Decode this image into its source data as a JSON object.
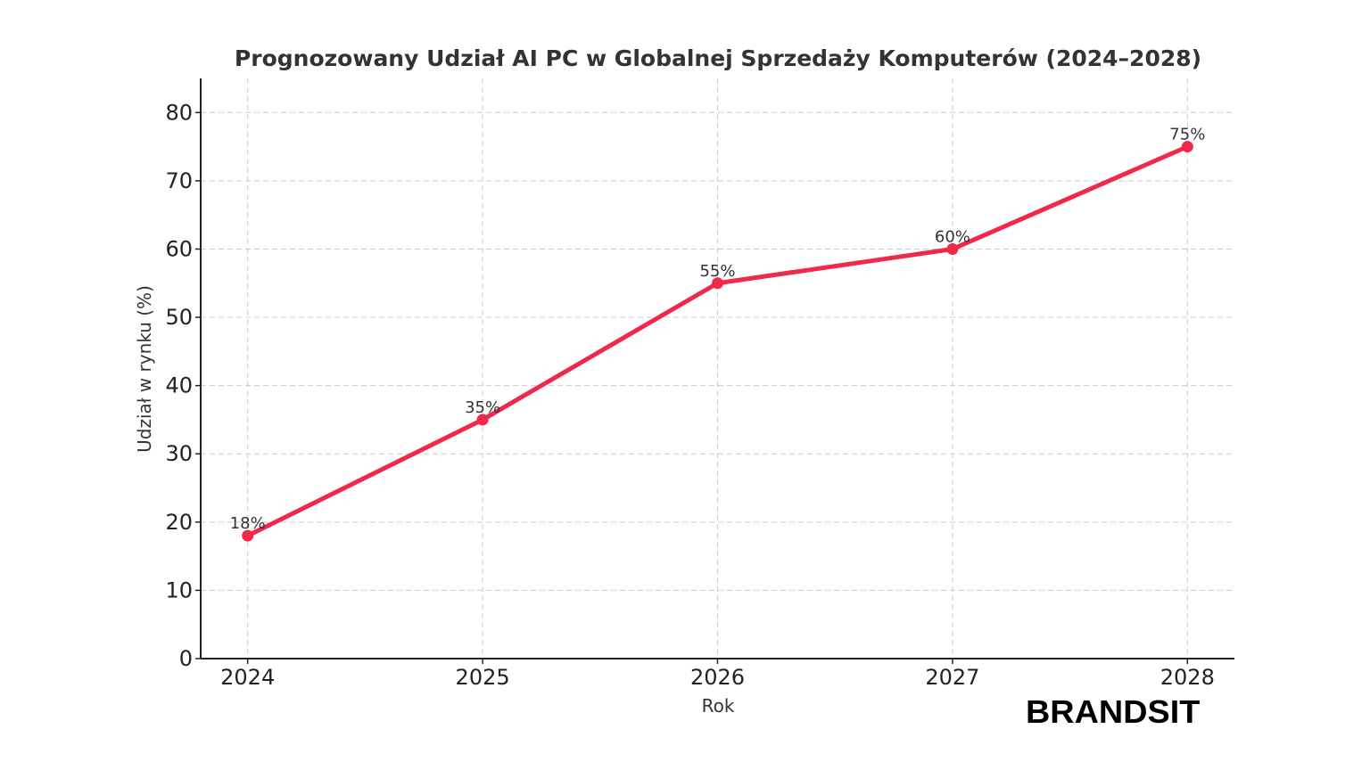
{
  "chart_data": {
    "type": "line",
    "title": "Prognozowany Udział AI PC w Globalnej Sprzedaży Komputerów (2024–2028)",
    "xlabel": "Rok",
    "ylabel": "Udział w rynku (%)",
    "categories": [
      "2024",
      "2025",
      "2026",
      "2027",
      "2028"
    ],
    "x": [
      2024,
      2025,
      2026,
      2027,
      2028
    ],
    "values": [
      18,
      35,
      55,
      60,
      75
    ],
    "data_labels": [
      "18%",
      "35%",
      "55%",
      "60%",
      "75%"
    ],
    "yticks": [
      0,
      10,
      20,
      30,
      40,
      50,
      60,
      70,
      80
    ],
    "ylim": [
      0,
      85
    ],
    "xlim": [
      2023.8,
      2028.2
    ],
    "grid": true,
    "line_color": "#f0284a",
    "marker": "circle"
  },
  "branding": {
    "logo_text": "BRANDSIT"
  }
}
